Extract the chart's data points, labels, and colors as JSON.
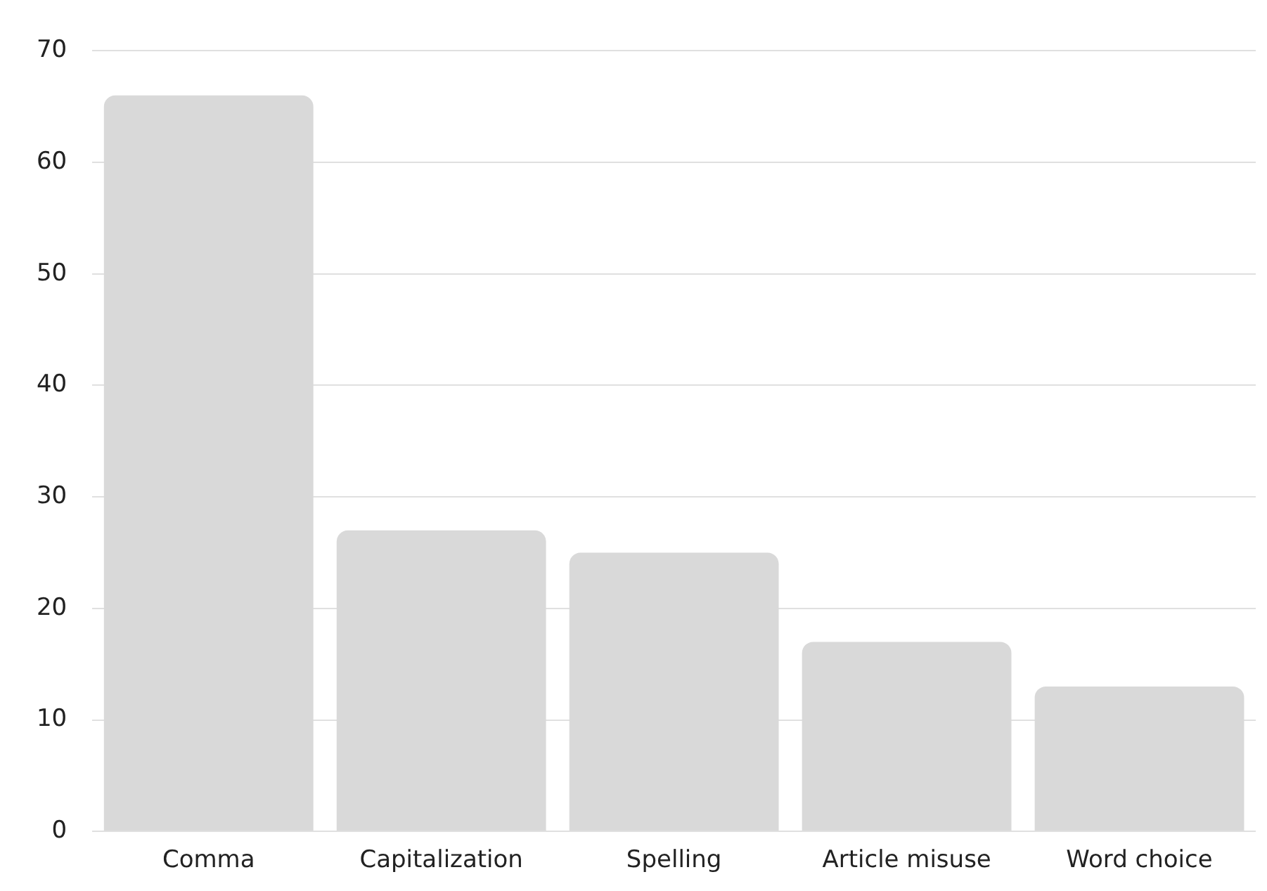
{
  "chart_data": {
    "type": "bar",
    "categories": [
      "Comma",
      "Capitalization",
      "Spelling",
      "Article misuse",
      "Word choice"
    ],
    "values": [
      66,
      27,
      25,
      17,
      13
    ],
    "color": "#d9d9d9",
    "ylim": [
      0,
      70
    ],
    "yticks": [
      0,
      10,
      20,
      30,
      40,
      50,
      60,
      70
    ],
    "grid": "y",
    "legend": false
  }
}
